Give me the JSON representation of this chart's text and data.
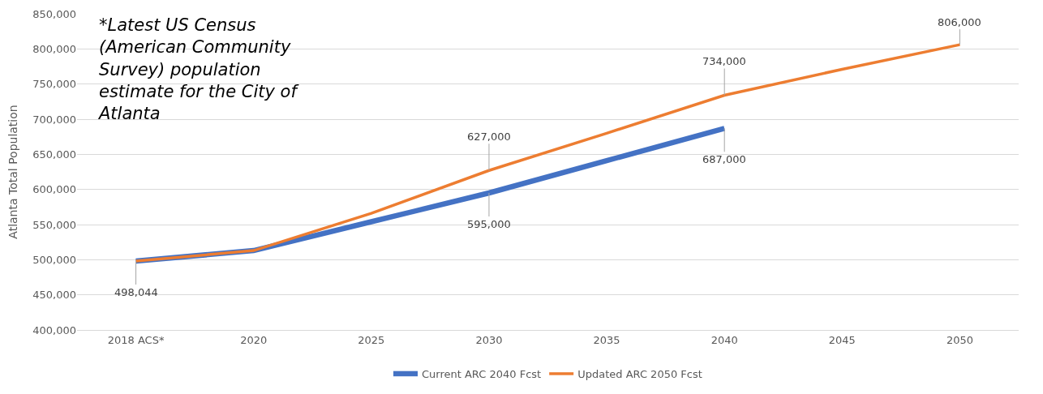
{
  "chart_data": {
    "type": "line",
    "ylabel": "Atlanta Total Population",
    "categories": [
      "2018 ACS*",
      "2020",
      "2025",
      "2030",
      "2035",
      "2040",
      "2045",
      "2050"
    ],
    "series": [
      {
        "name": "Current ARC 2040 Fcst",
        "color": "#4472c4",
        "values": [
          498044,
          513000,
          554000,
          595000,
          641000,
          687000,
          null,
          null
        ],
        "value_labels": [
          "498,044",
          null,
          null,
          "595,000",
          null,
          "687,000",
          null,
          null
        ]
      },
      {
        "name": "Updated ARC 2050 Fcst",
        "color": "#ed7d31",
        "values": [
          498000,
          513000,
          566000,
          627000,
          680000,
          734000,
          771000,
          806000
        ],
        "value_labels": [
          null,
          null,
          null,
          "627,000",
          null,
          "734,000",
          null,
          "806,000"
        ]
      }
    ],
    "ylim": [
      400000,
      850000
    ],
    "yticks": [
      {
        "value": 400000,
        "label": "400,000"
      },
      {
        "value": 450000,
        "label": "450,000"
      },
      {
        "value": 500000,
        "label": "500,000"
      },
      {
        "value": 550000,
        "label": "550,000"
      },
      {
        "value": 600000,
        "label": "600,000"
      },
      {
        "value": 650000,
        "label": "650,000"
      },
      {
        "value": 700000,
        "label": "700,000"
      },
      {
        "value": 750000,
        "label": "750,000"
      },
      {
        "value": 800000,
        "label": "800,000"
      },
      {
        "value": 850000,
        "label": "850,000"
      }
    ],
    "grid": "y",
    "legend": "bottom",
    "marker": "none",
    "line_style": "solid",
    "annotations": [
      "*Latest US Census (American Community Survey) population estimate for the City of Atlanta"
    ]
  }
}
